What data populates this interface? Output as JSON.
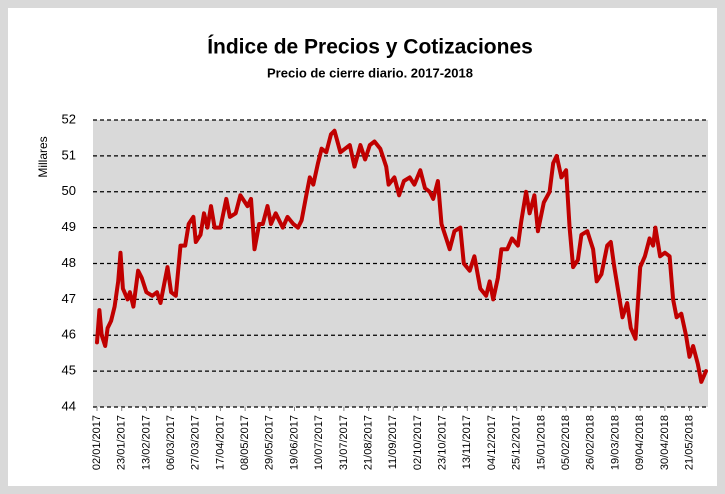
{
  "chart_data": {
    "type": "line",
    "title": "Índice de Precios y Cotizaciones",
    "subtitle": "Precio de cierre diario. 2017-2018",
    "ylabel": "Millares",
    "color": "#c00000",
    "grid": true,
    "ylim": [
      44,
      52
    ],
    "yticks": [
      44,
      45,
      46,
      47,
      48,
      49,
      50,
      51,
      52
    ],
    "xlim": [
      "02/01/2017",
      "04/06/2018"
    ],
    "xticks": [
      "02/01/2017",
      "23/01/2017",
      "13/02/2017",
      "06/03/2017",
      "27/03/2017",
      "17/04/2017",
      "08/05/2017",
      "29/05/2017",
      "19/06/2017",
      "10/07/2017",
      "31/07/2017",
      "21/08/2017",
      "11/09/2017",
      "02/10/2017",
      "23/10/2017",
      "13/11/2017",
      "04/12/2017",
      "25/12/2017",
      "15/01/2018",
      "05/02/2018",
      "26/02/2018",
      "19/03/2018",
      "09/04/2018",
      "30/04/2018",
      "21/05/2018"
    ],
    "x": [
      "02/01/2017",
      "04/01/2017",
      "06/01/2017",
      "09/01/2017",
      "11/01/2017",
      "14/01/2017",
      "17/01/2017",
      "20/01/2017",
      "22/01/2017",
      "24/01/2017",
      "28/01/2017",
      "30/01/2017",
      "02/02/2017",
      "06/02/2017",
      "09/02/2017",
      "13/02/2017",
      "18/02/2017",
      "22/02/2017",
      "25/02/2017",
      "28/02/2017",
      "03/03/2017",
      "06/03/2017",
      "10/03/2017",
      "14/03/2017",
      "18/03/2017",
      "21/03/2017",
      "25/03/2017",
      "27/03/2017",
      "31/03/2017",
      "03/04/2017",
      "06/04/2017",
      "09/04/2017",
      "12/04/2017",
      "17/04/2017",
      "22/04/2017",
      "25/04/2017",
      "30/04/2017",
      "04/05/2017",
      "10/05/2017",
      "13/05/2017",
      "16/05/2017",
      "20/05/2017",
      "23/05/2017",
      "27/05/2017",
      "30/05/2017",
      "03/06/2017",
      "09/06/2017",
      "13/06/2017",
      "18/06/2017",
      "22/06/2017",
      "25/06/2017",
      "29/06/2017",
      "02/07/2017",
      "05/07/2017",
      "09/07/2017",
      "12/07/2017",
      "16/07/2017",
      "20/07/2017",
      "23/07/2017",
      "28/07/2017",
      "01/08/2017",
      "05/08/2017",
      "09/08/2017",
      "14/08/2017",
      "18/08/2017",
      "22/08/2017",
      "26/08/2017",
      "31/08/2017",
      "05/09/2017",
      "07/09/2017",
      "12/09/2017",
      "16/09/2017",
      "20/09/2017",
      "25/09/2017",
      "29/09/2017",
      "04/10/2017",
      "08/10/2017",
      "12/10/2017",
      "15/10/2017",
      "19/10/2017",
      "22/10/2017",
      "26/10/2017",
      "29/10/2017",
      "02/11/2017",
      "07/11/2017",
      "10/11/2017",
      "15/11/2017",
      "19/11/2017",
      "24/11/2017",
      "29/11/2017",
      "02/12/2017",
      "05/12/2017",
      "09/12/2017",
      "12/12/2017",
      "17/12/2017",
      "21/12/2017",
      "26/12/2017",
      "29/12/2017",
      "02/01/2018",
      "05/01/2018",
      "09/01/2018",
      "12/01/2018",
      "17/01/2018",
      "22/01/2018",
      "25/01/2018",
      "28/01/2018",
      "01/02/2018",
      "05/02/2018",
      "08/02/2018",
      "11/02/2018",
      "15/02/2018",
      "18/02/2018",
      "23/02/2018",
      "28/02/2018",
      "03/03/2018",
      "07/03/2018",
      "12/03/2018",
      "15/03/2018",
      "18/03/2018",
      "22/03/2018",
      "25/03/2018",
      "29/03/2018",
      "01/04/2018",
      "05/04/2018",
      "09/04/2018",
      "13/04/2018",
      "17/04/2018",
      "20/04/2018",
      "22/04/2018",
      "26/04/2018",
      "30/04/2018",
      "04/05/2018",
      "07/05/2018",
      "10/05/2018",
      "14/05/2018",
      "18/05/2018",
      "21/05/2018",
      "24/05/2018",
      "28/05/2018",
      "31/05/2018",
      "04/06/2018"
    ],
    "values": [
      45.8,
      46.7,
      46.0,
      45.7,
      46.2,
      46.4,
      46.8,
      47.5,
      48.3,
      47.3,
      47.0,
      47.2,
      46.8,
      47.8,
      47.6,
      47.2,
      47.1,
      47.2,
      46.9,
      47.4,
      47.9,
      47.2,
      47.1,
      48.5,
      48.5,
      49.1,
      49.3,
      48.6,
      48.8,
      49.4,
      49.0,
      49.6,
      49.0,
      49.0,
      49.8,
      49.3,
      49.4,
      49.9,
      49.6,
      49.8,
      48.4,
      49.1,
      49.1,
      49.6,
      49.1,
      49.4,
      49.0,
      49.3,
      49.1,
      49.0,
      49.2,
      49.9,
      50.4,
      50.2,
      50.8,
      51.2,
      51.1,
      51.6,
      51.7,
      51.1,
      51.2,
      51.3,
      50.7,
      51.3,
      50.9,
      51.3,
      51.4,
      51.2,
      50.7,
      50.2,
      50.4,
      49.9,
      50.3,
      50.4,
      50.2,
      50.6,
      50.1,
      50.0,
      49.8,
      50.3,
      49.1,
      48.7,
      48.4,
      48.9,
      49.0,
      48.0,
      47.8,
      48.2,
      47.3,
      47.1,
      47.5,
      47.0,
      47.6,
      48.4,
      48.4,
      48.7,
      48.5,
      49.2,
      50.0,
      49.4,
      49.9,
      48.9,
      49.7,
      50.0,
      50.8,
      51.0,
      50.4,
      50.6,
      49.0,
      47.9,
      48.1,
      48.8,
      48.9,
      48.4,
      47.5,
      47.7,
      48.5,
      48.6,
      47.9,
      47.1,
      46.5,
      46.9,
      46.2,
      45.9,
      47.9,
      48.2,
      48.7,
      48.5,
      49.0,
      48.2,
      48.3,
      48.2,
      47.0,
      46.5,
      46.6,
      46.0,
      45.4,
      45.7,
      45.2,
      44.7,
      45.0
    ]
  }
}
